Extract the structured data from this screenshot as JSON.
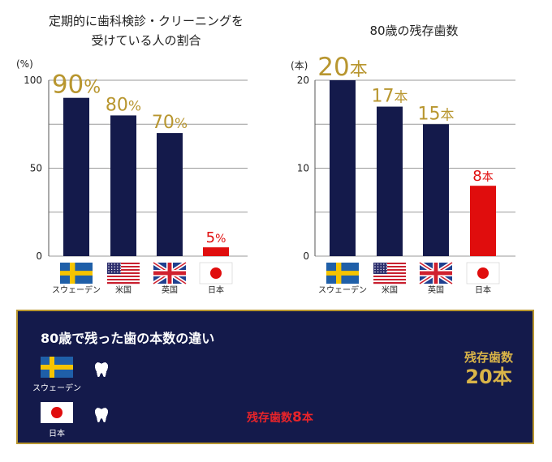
{
  "chart_data": [
    {
      "type": "bar",
      "title_lines": [
        "定期的に歯科検診・クリーニングを",
        "受けている人の割合"
      ],
      "unit": "(%)",
      "ylim": [
        0,
        100
      ],
      "yticks": [
        "0",
        "50",
        "100"
      ],
      "ytick_values": [
        0,
        50,
        100
      ],
      "categories": [
        "スウェーデン",
        "米国",
        "英国",
        "日本"
      ],
      "values": [
        90,
        80,
        70,
        5
      ],
      "labels": [
        {
          "num": "90",
          "suffix": "%"
        },
        {
          "num": "80",
          "suffix": "%"
        },
        {
          "num": "70",
          "suffix": "%"
        },
        {
          "num": "5",
          "suffix": "%"
        }
      ],
      "bar_colors": [
        "#141a4b",
        "#141a4b",
        "#141a4b",
        "#e00d0d"
      ],
      "label_colors": [
        "#b8962f",
        "#b8962f",
        "#b8962f",
        "#e00d0d"
      ],
      "grid": true
    },
    {
      "type": "bar",
      "title": "80歳の残存歯数",
      "unit": "(本)",
      "ylim": [
        0,
        20
      ],
      "yticks": [
        "0",
        "10",
        "20"
      ],
      "ytick_values": [
        0,
        10,
        20
      ],
      "categories": [
        "スウェーデン",
        "米国",
        "英国",
        "日本"
      ],
      "values": [
        20,
        17,
        15,
        8
      ],
      "labels": [
        {
          "num": "20",
          "suffix": "本"
        },
        {
          "num": "17",
          "suffix": "本"
        },
        {
          "num": "15",
          "suffix": "本"
        },
        {
          "num": "8",
          "suffix": "本"
        }
      ],
      "bar_colors": [
        "#141a4b",
        "#141a4b",
        "#141a4b",
        "#e00d0d"
      ],
      "label_colors": [
        "#b8962f",
        "#b8962f",
        "#b8962f",
        "#e00d0d"
      ],
      "grid": true
    }
  ],
  "comparison": {
    "title": "80歳で残った歯の本数の違い",
    "sweden": {
      "country": "スウェーデン",
      "teeth": 20,
      "summary_line1": "残存歯数",
      "summary_line2": "20本"
    },
    "japan": {
      "country": "日本",
      "teeth": 8,
      "summary_prefix": "残存歯数",
      "summary_num": "8",
      "summary_unit": "本"
    }
  },
  "flags": [
    "sweden-flag",
    "usa-flag",
    "uk-flag",
    "japan-flag"
  ],
  "colors": {
    "navy": "#141a4b",
    "gold": "#b8962f",
    "red": "#e00d0d"
  }
}
